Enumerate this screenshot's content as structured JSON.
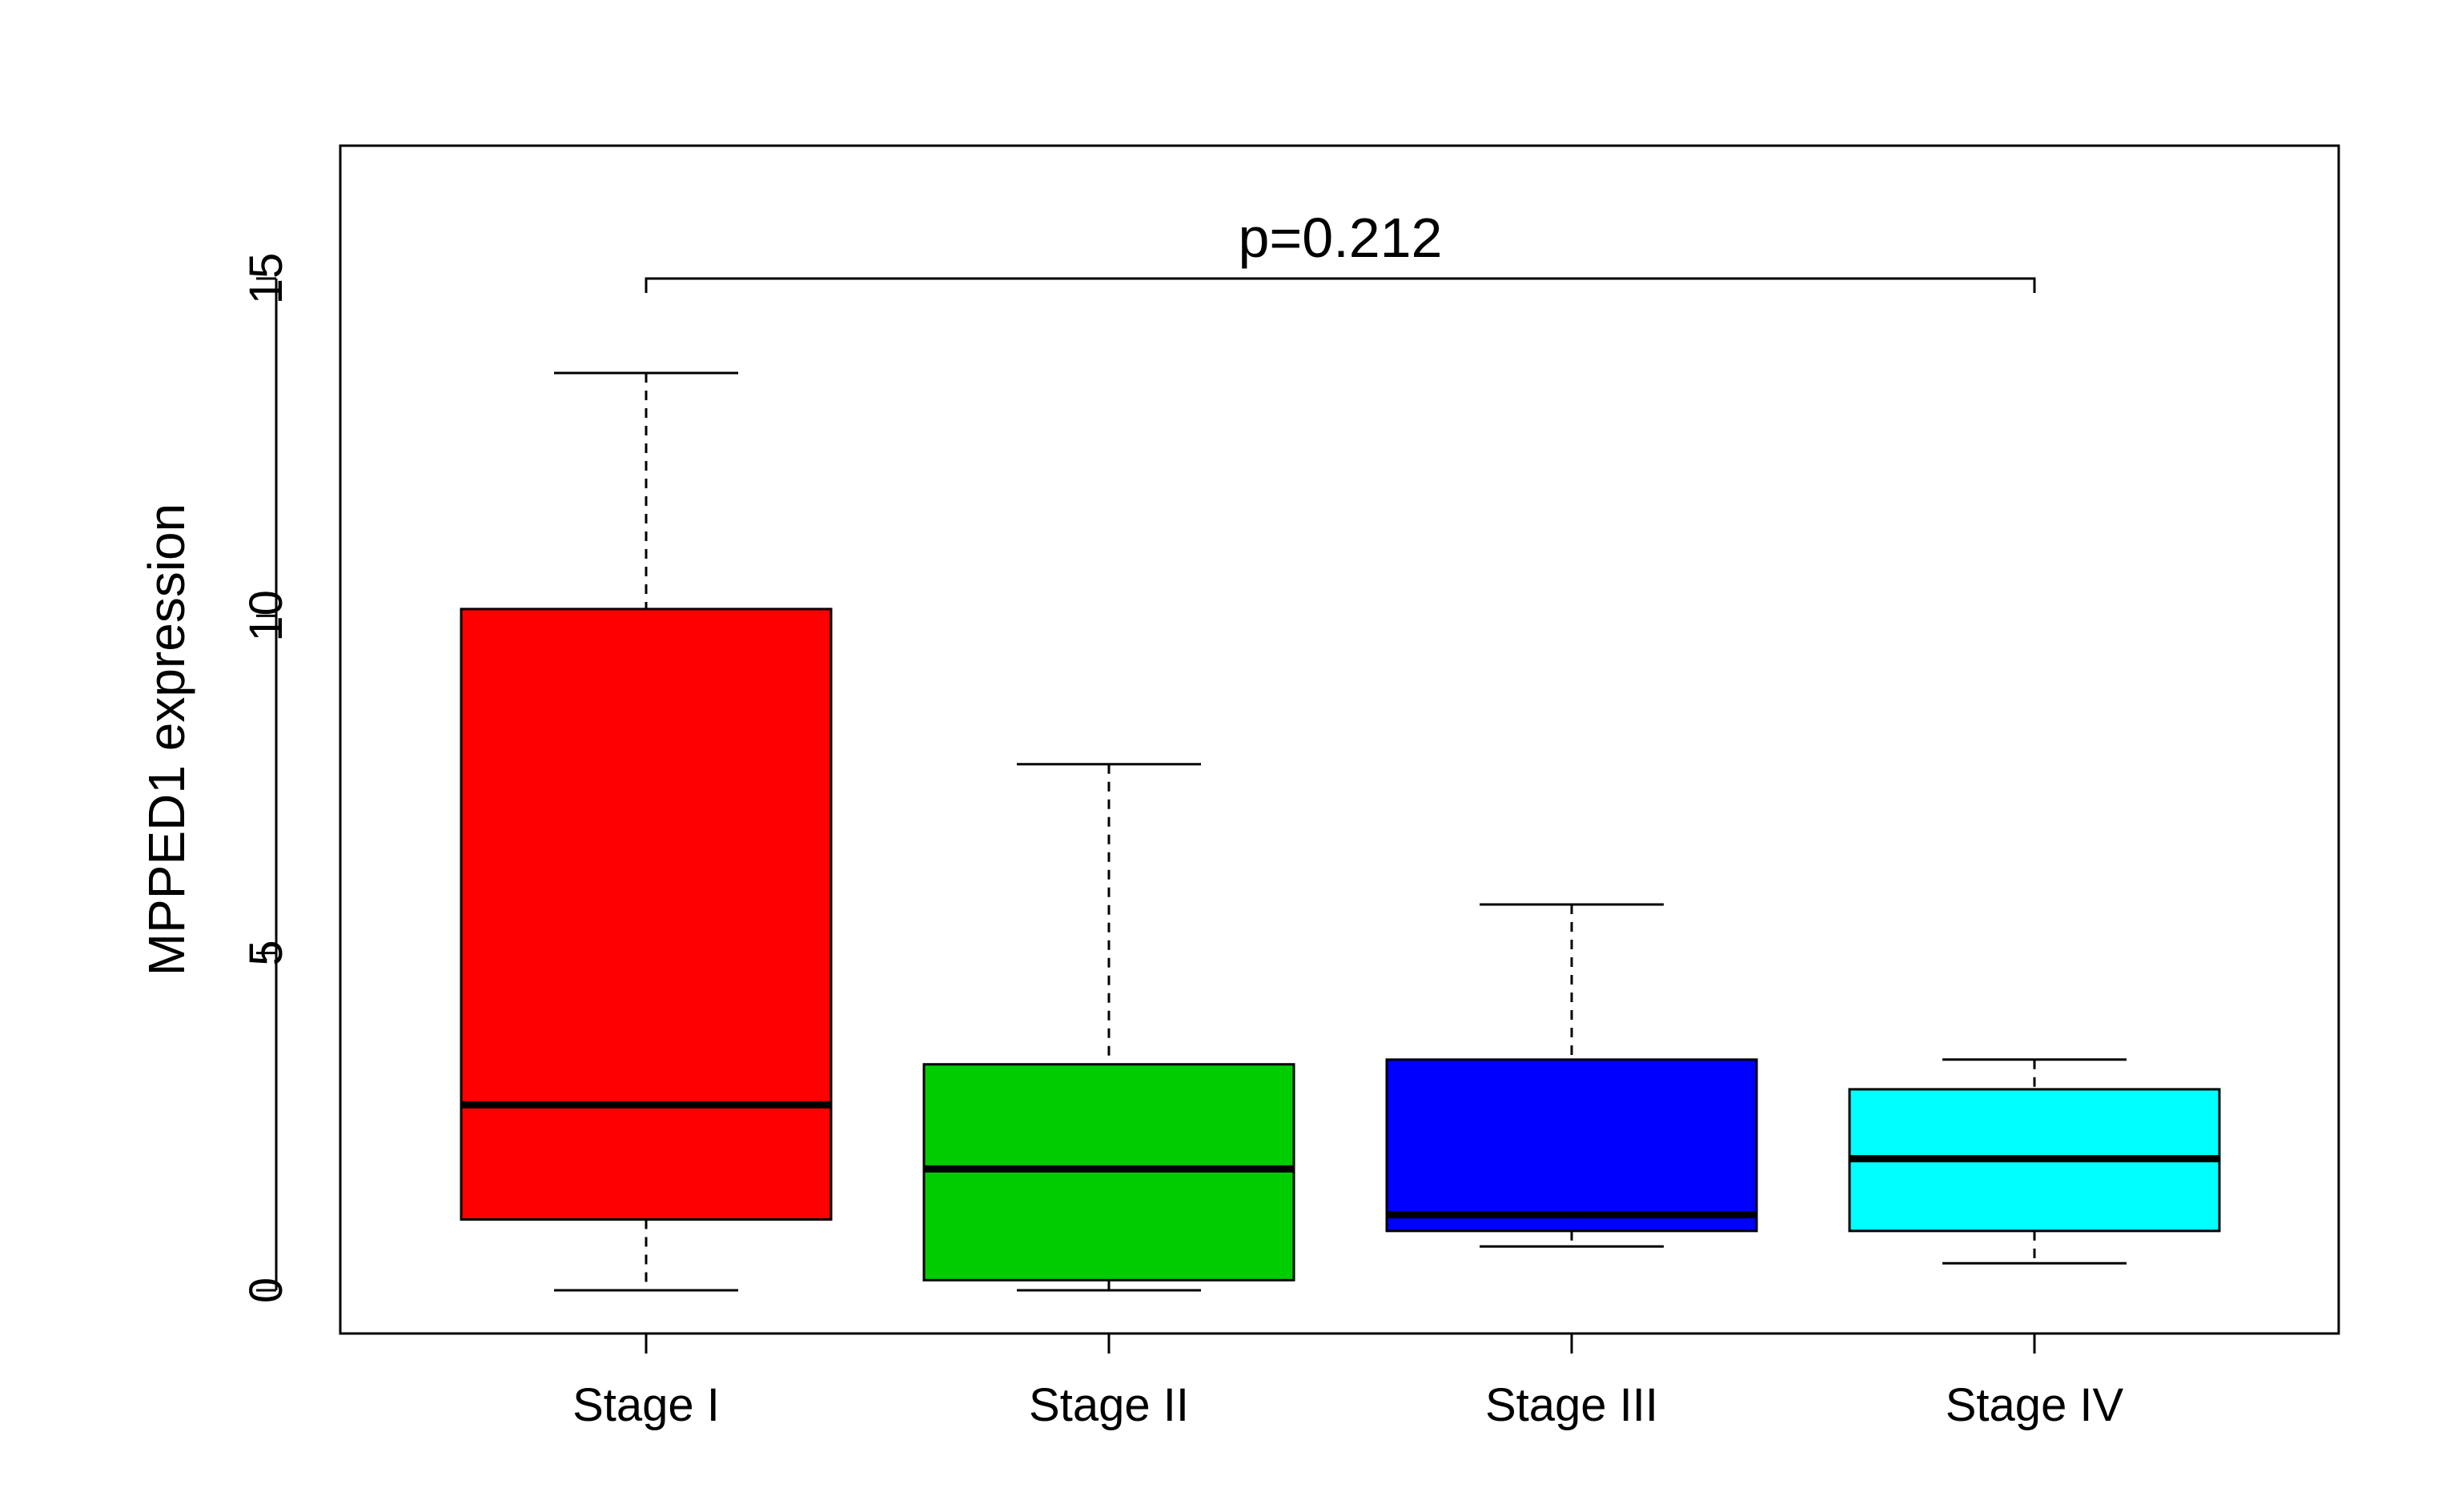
{
  "chart_data": {
    "type": "box",
    "ylabel": "MPPED1 expression",
    "ylim": [
      -0.66,
      17
    ],
    "yticks": [
      0,
      5,
      10,
      15
    ],
    "categories": [
      "Stage I",
      "Stage II",
      "Stage III",
      "Stage IV"
    ],
    "boxes": [
      {
        "category": "Stage I",
        "min": 0.0,
        "q1": 1.05,
        "median": 2.75,
        "q3": 10.1,
        "max": 13.6,
        "color": "#ff0000"
      },
      {
        "category": "Stage II",
        "min": 0.0,
        "q1": 0.15,
        "median": 1.8,
        "q3": 3.35,
        "max": 7.8,
        "color": "#00cd00"
      },
      {
        "category": "Stage III",
        "min": 0.65,
        "q1": 0.88,
        "median": 1.12,
        "q3": 3.42,
        "max": 5.72,
        "color": "#0000ff"
      },
      {
        "category": "Stage IV",
        "min": 0.4,
        "q1": 0.88,
        "median": 1.95,
        "q3": 2.98,
        "max": 3.42,
        "color": "#00ffff"
      }
    ],
    "annotation": {
      "text": "p=0.212",
      "from": "Stage I",
      "to": "Stage IV",
      "y": 15
    },
    "grid": false,
    "legend": "none"
  }
}
